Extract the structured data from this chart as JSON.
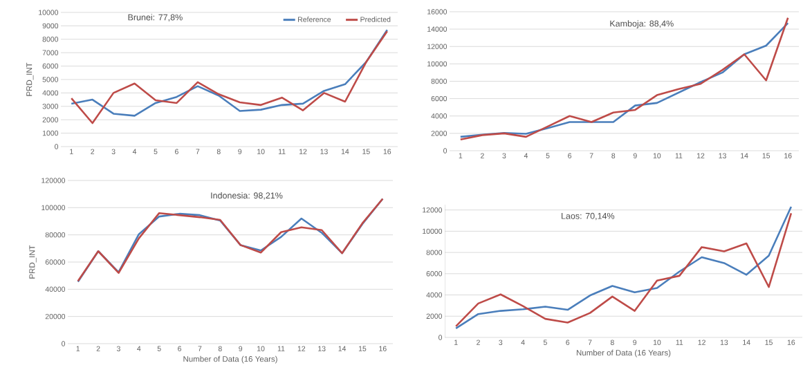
{
  "chart_data": [
    {
      "type": "line",
      "title": "Brunei: 77,8%",
      "ylabel": "PRD_INT",
      "categories": [
        "1",
        "2",
        "3",
        "4",
        "5",
        "6",
        "7",
        "8",
        "9",
        "10",
        "11",
        "12",
        "13",
        "14",
        "15",
        "16"
      ],
      "series": [
        {
          "name": "Reference",
          "color": "#4a7ebb",
          "values": [
            3200,
            3500,
            2450,
            2300,
            3250,
            3700,
            4500,
            3800,
            2650,
            2750,
            3100,
            3200,
            4150,
            4650,
            6300,
            8700
          ]
        },
        {
          "name": "Predicted",
          "color": "#be4b48",
          "values": [
            3600,
            1750,
            4000,
            4700,
            3450,
            3250,
            4800,
            3900,
            3300,
            3100,
            3650,
            2700,
            4000,
            3350,
            6300,
            8600
          ]
        }
      ],
      "ylim": [
        0,
        10000
      ],
      "yticks": [
        0,
        1000,
        2000,
        3000,
        4000,
        5000,
        6000,
        7000,
        8000,
        9000,
        10000
      ],
      "grid": "y",
      "legend": "top right",
      "line_style": "solid",
      "marker": "none"
    },
    {
      "type": "line",
      "title": "Kamboja: 88,4%",
      "categories": [
        "1",
        "2",
        "3",
        "4",
        "5",
        "6",
        "7",
        "8",
        "9",
        "10",
        "11",
        "12",
        "13",
        "14",
        "15",
        "16"
      ],
      "series": [
        {
          "color": "#4a7ebb",
          "values": [
            1600,
            1850,
            2050,
            1950,
            2600,
            3300,
            3300,
            3300,
            5200,
            5500,
            6700,
            7900,
            9000,
            11100,
            12100,
            14700
          ]
        },
        {
          "color": "#be4b48",
          "values": [
            1300,
            1800,
            2000,
            1600,
            2800,
            4000,
            3300,
            4400,
            4700,
            6400,
            7100,
            7700,
            9300,
            11100,
            8100,
            15300
          ]
        }
      ],
      "ylim": [
        0,
        16000
      ],
      "yticks": [
        0,
        2000,
        4000,
        6000,
        8000,
        10000,
        12000,
        14000,
        16000
      ],
      "grid": "y",
      "line_style": "solid",
      "marker": "none"
    },
    {
      "type": "line",
      "title": "Indonesia: 98,21%",
      "xlabel": "Number of Data (16 Years)",
      "ylabel": "PRD_INT",
      "categories": [
        "1",
        "2",
        "3",
        "4",
        "5",
        "6",
        "7",
        "8",
        "9",
        "10",
        "11",
        "12",
        "13",
        "14",
        "15",
        "16"
      ],
      "series": [
        {
          "color": "#4a7ebb",
          "values": [
            45500,
            68000,
            52500,
            80500,
            93500,
            95500,
            94500,
            90500,
            72500,
            68500,
            78500,
            92000,
            81500,
            66500,
            88000,
            106500
          ]
        },
        {
          "color": "#be4b48",
          "values": [
            46000,
            68000,
            52000,
            77500,
            96000,
            94500,
            93000,
            91000,
            72500,
            67000,
            82000,
            85500,
            83500,
            66500,
            88500,
            106500
          ]
        }
      ],
      "ylim": [
        0,
        120000
      ],
      "yticks": [
        0,
        20000,
        40000,
        60000,
        80000,
        100000,
        120000
      ],
      "grid": "y",
      "line_style": "solid",
      "marker": "none"
    },
    {
      "type": "line",
      "title": "Laos: 70,14%",
      "xlabel": "Number of Data (16 Years)",
      "categories": [
        "1",
        "2",
        "3",
        "4",
        "5",
        "6",
        "7",
        "8",
        "9",
        "10",
        "11",
        "12",
        "13",
        "14",
        "15",
        "16"
      ],
      "series": [
        {
          "color": "#4a7ebb",
          "values": [
            850,
            2200,
            2500,
            2650,
            2900,
            2600,
            3950,
            4850,
            4250,
            4650,
            6200,
            7550,
            7000,
            5900,
            7700,
            12300
          ]
        },
        {
          "color": "#be4b48",
          "values": [
            1050,
            3200,
            4050,
            2950,
            1750,
            1400,
            2300,
            3850,
            2500,
            5350,
            5800,
            8500,
            8100,
            8850,
            4750,
            11700
          ]
        }
      ],
      "ylim": [
        0,
        12500
      ],
      "yticks": [
        0,
        2000,
        4000,
        6000,
        8000,
        10000,
        12000
      ],
      "grid": "y",
      "line_style": "solid",
      "marker": "none"
    }
  ]
}
